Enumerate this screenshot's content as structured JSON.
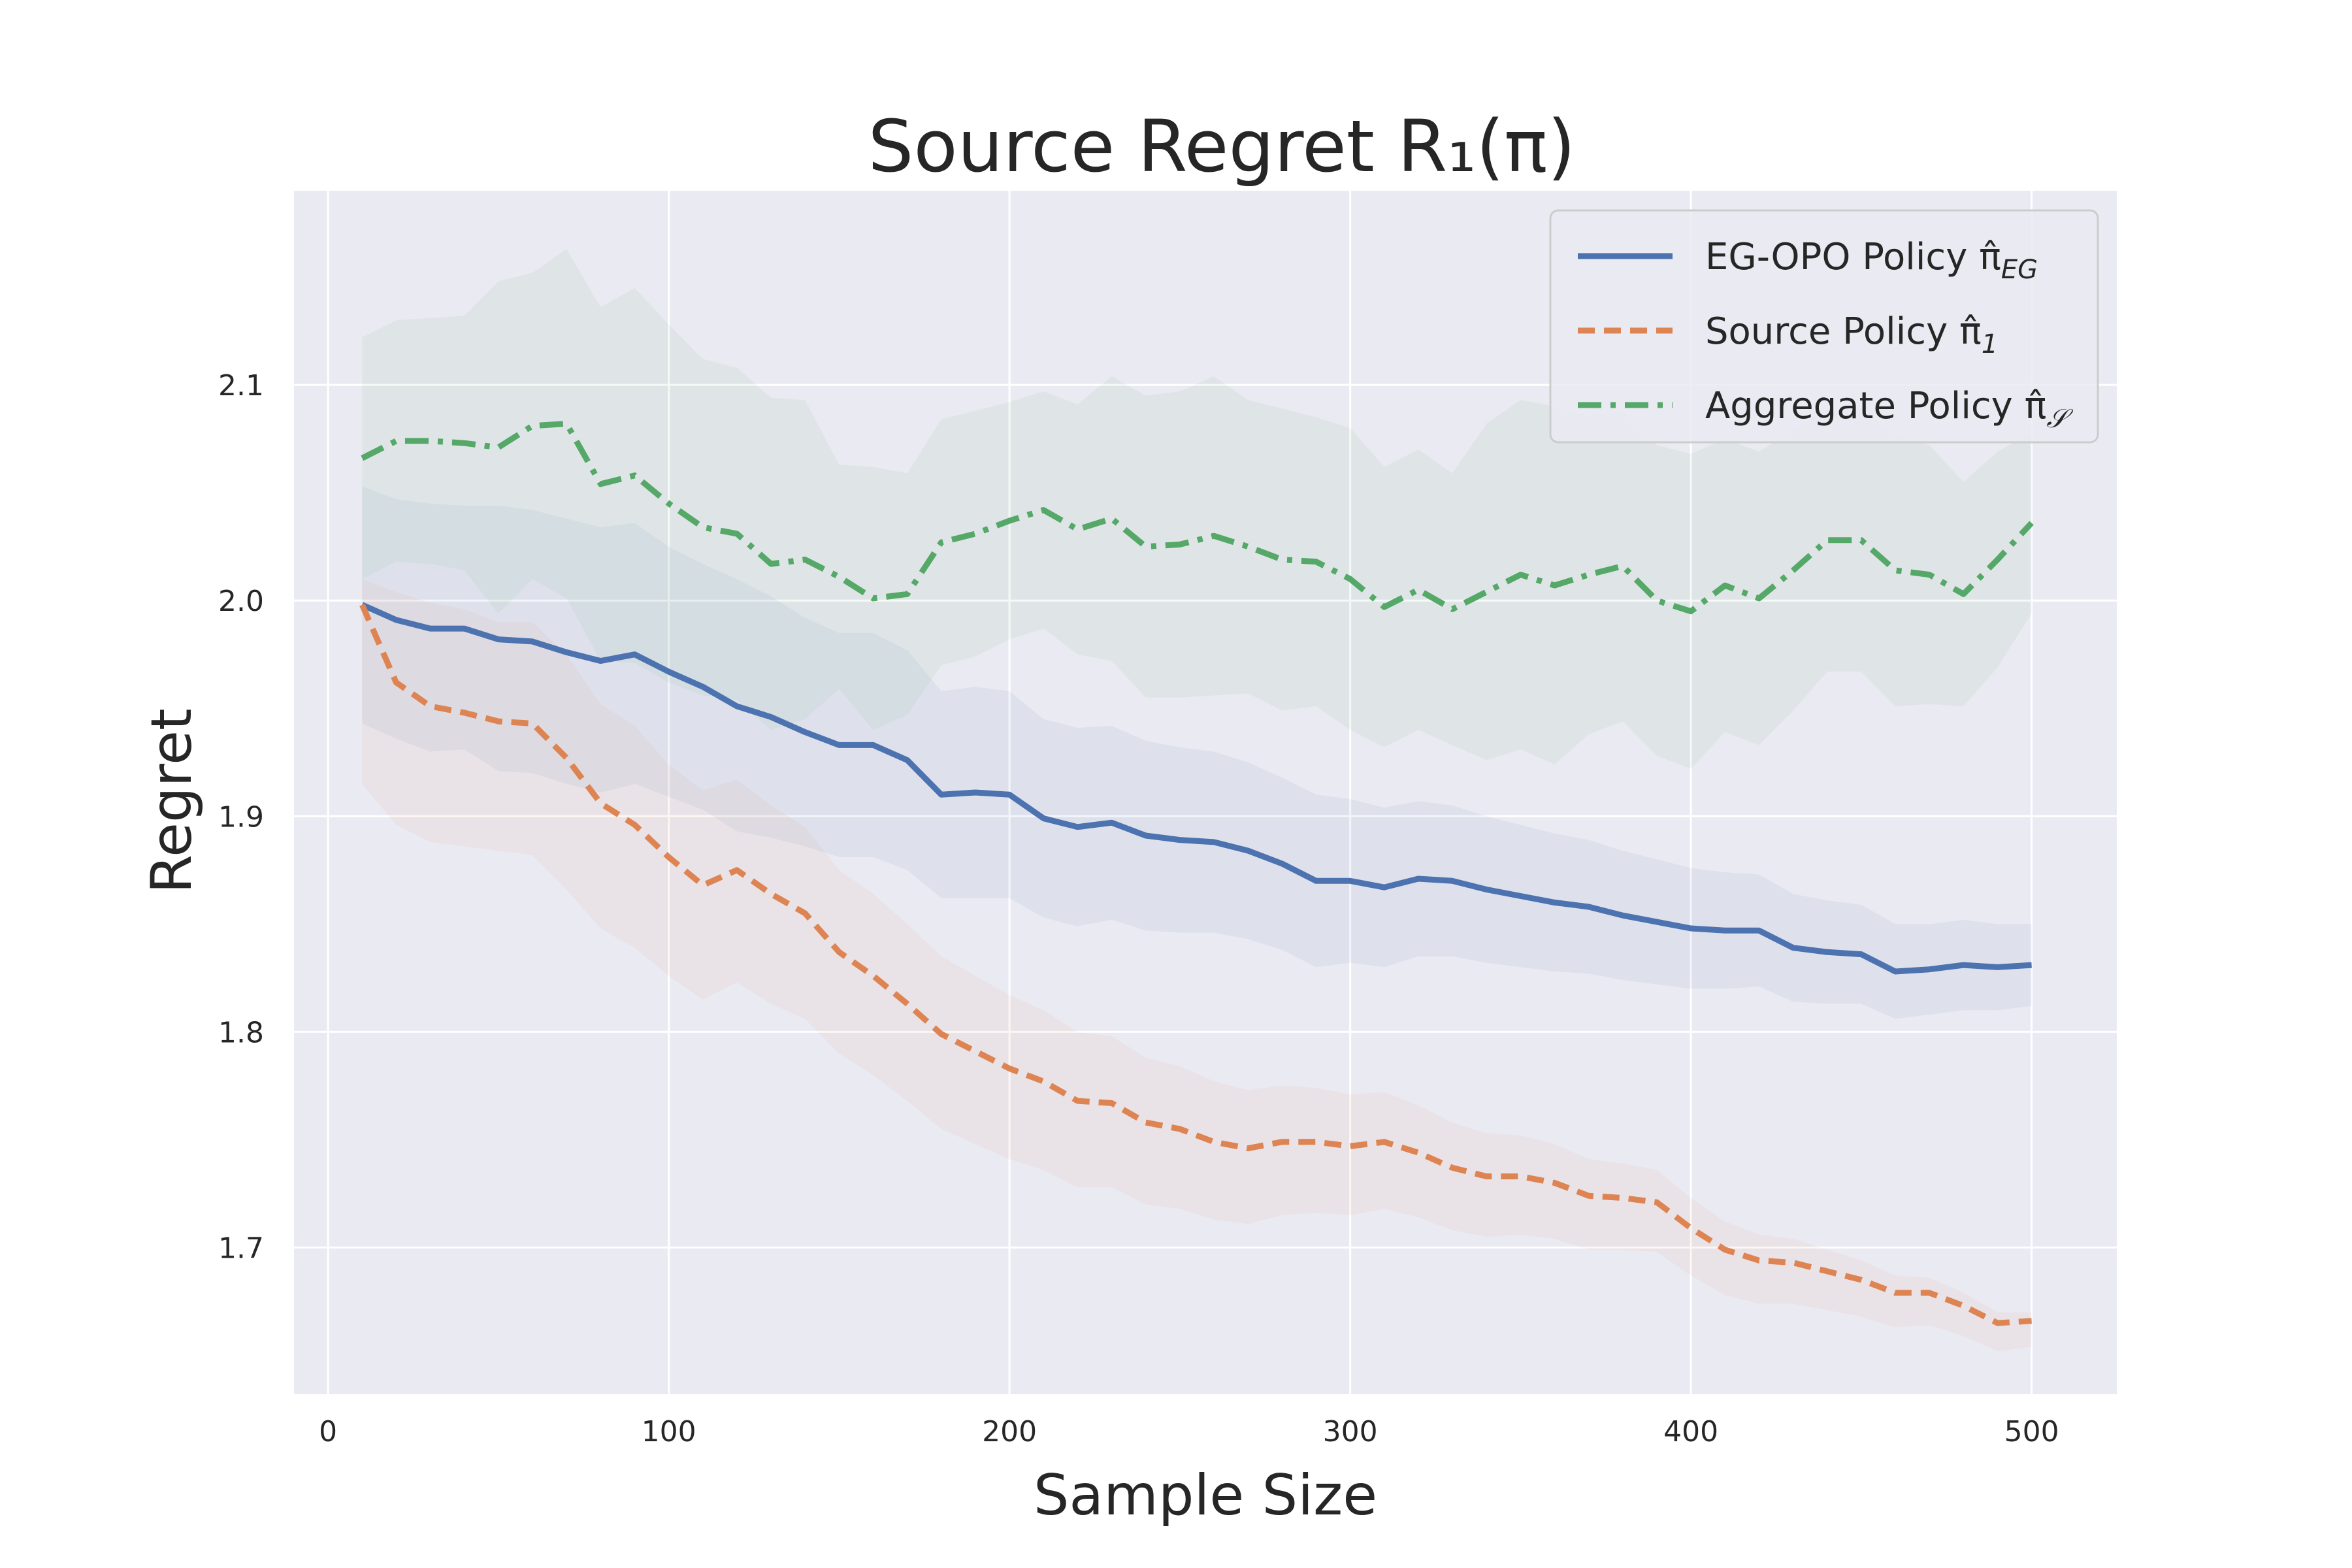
{
  "chart_data": {
    "type": "line",
    "title": "Source Regret  R₁(π)",
    "xlabel": "Sample Size",
    "ylabel": "Regret",
    "xlim": [
      -10,
      525
    ],
    "ylim": [
      1.632,
      2.19
    ],
    "xticks": [
      0,
      100,
      200,
      300,
      400,
      500
    ],
    "yticks": [
      1.7,
      1.8,
      1.9,
      2.0,
      2.1
    ],
    "ytick_labels": [
      "1.7",
      "1.8",
      "1.9",
      "2.0",
      "2.1"
    ],
    "grid": true,
    "legend_position": "top-right",
    "x": [
      10,
      20,
      30,
      40,
      50,
      60,
      70,
      80,
      90,
      100,
      110,
      120,
      130,
      140,
      150,
      160,
      170,
      180,
      190,
      200,
      210,
      220,
      230,
      240,
      250,
      260,
      270,
      280,
      290,
      300,
      310,
      320,
      330,
      340,
      350,
      360,
      370,
      380,
      390,
      400,
      410,
      420,
      430,
      440,
      450,
      460,
      470,
      480,
      490,
      500
    ],
    "series": [
      {
        "name": "EG-OPO Policy π̂",
        "name_subscript": "EG",
        "color": "#4c72b0",
        "dash": "solid",
        "values": [
          1.998,
          1.991,
          1.987,
          1.987,
          1.982,
          1.981,
          1.976,
          1.972,
          1.975,
          1.967,
          1.96,
          1.951,
          1.946,
          1.939,
          1.933,
          1.933,
          1.926,
          1.91,
          1.911,
          1.91,
          1.899,
          1.895,
          1.897,
          1.891,
          1.889,
          1.888,
          1.884,
          1.878,
          1.87,
          1.87,
          1.867,
          1.871,
          1.87,
          1.866,
          1.863,
          1.86,
          1.858,
          1.854,
          1.851,
          1.848,
          1.847,
          1.847,
          1.839,
          1.837,
          1.836,
          1.828,
          1.829,
          1.831,
          1.83,
          1.831
        ],
        "upper": [
          2.053,
          2.047,
          2.045,
          2.044,
          2.044,
          2.042,
          2.038,
          2.034,
          2.036,
          2.025,
          2.017,
          2.01,
          2.002,
          1.992,
          1.985,
          1.985,
          1.977,
          1.958,
          1.96,
          1.958,
          1.945,
          1.941,
          1.942,
          1.935,
          1.932,
          1.93,
          1.925,
          1.918,
          1.91,
          1.908,
          1.904,
          1.907,
          1.905,
          1.9,
          1.896,
          1.892,
          1.889,
          1.884,
          1.88,
          1.876,
          1.874,
          1.873,
          1.864,
          1.861,
          1.859,
          1.85,
          1.85,
          1.852,
          1.85,
          1.85
        ],
        "lower": [
          1.943,
          1.936,
          1.93,
          1.931,
          1.921,
          1.92,
          1.915,
          1.911,
          1.915,
          1.909,
          1.903,
          1.893,
          1.89,
          1.886,
          1.881,
          1.881,
          1.875,
          1.862,
          1.862,
          1.862,
          1.853,
          1.849,
          1.852,
          1.847,
          1.846,
          1.846,
          1.843,
          1.838,
          1.83,
          1.832,
          1.83,
          1.835,
          1.835,
          1.832,
          1.83,
          1.828,
          1.827,
          1.824,
          1.822,
          1.82,
          1.82,
          1.821,
          1.814,
          1.813,
          1.813,
          1.806,
          1.808,
          1.81,
          1.81,
          1.812
        ]
      },
      {
        "name": "Source Policy π̂",
        "name_subscript": "1",
        "color": "#dd8452",
        "dash": "dashed",
        "values": [
          1.998,
          1.962,
          1.951,
          1.948,
          1.944,
          1.943,
          1.927,
          1.906,
          1.896,
          1.881,
          1.868,
          1.875,
          1.864,
          1.855,
          1.837,
          1.826,
          1.813,
          1.799,
          1.791,
          1.783,
          1.777,
          1.768,
          1.767,
          1.758,
          1.755,
          1.749,
          1.746,
          1.749,
          1.749,
          1.747,
          1.749,
          1.744,
          1.737,
          1.733,
          1.733,
          1.73,
          1.724,
          1.723,
          1.721,
          1.709,
          1.699,
          1.694,
          1.693,
          1.689,
          1.685,
          1.679,
          1.679,
          1.673,
          1.665,
          1.666
        ],
        "upper": [
          2.01,
          2.004,
          1.999,
          1.996,
          1.99,
          1.99,
          1.975,
          1.952,
          1.942,
          1.924,
          1.912,
          1.917,
          1.905,
          1.895,
          1.875,
          1.864,
          1.85,
          1.835,
          1.826,
          1.817,
          1.81,
          1.8,
          1.798,
          1.788,
          1.784,
          1.777,
          1.773,
          1.775,
          1.774,
          1.771,
          1.772,
          1.766,
          1.758,
          1.753,
          1.752,
          1.748,
          1.741,
          1.739,
          1.736,
          1.723,
          1.712,
          1.706,
          1.704,
          1.699,
          1.694,
          1.687,
          1.686,
          1.679,
          1.67,
          1.67
        ],
        "lower": [
          1.915,
          1.896,
          1.888,
          1.886,
          1.884,
          1.882,
          1.866,
          1.848,
          1.839,
          1.826,
          1.815,
          1.823,
          1.813,
          1.806,
          1.79,
          1.78,
          1.768,
          1.755,
          1.748,
          1.741,
          1.736,
          1.728,
          1.728,
          1.72,
          1.718,
          1.713,
          1.711,
          1.715,
          1.716,
          1.715,
          1.718,
          1.714,
          1.708,
          1.705,
          1.706,
          1.704,
          1.699,
          1.699,
          1.698,
          1.687,
          1.678,
          1.674,
          1.674,
          1.671,
          1.668,
          1.663,
          1.664,
          1.659,
          1.652,
          1.654
        ]
      },
      {
        "name": "Aggregate Policy π̂",
        "name_subscript": "𝒮",
        "color": "#55a868",
        "dash": "dashdot",
        "values": [
          2.066,
          2.074,
          2.074,
          2.073,
          2.071,
          2.081,
          2.082,
          2.054,
          2.058,
          2.045,
          2.034,
          2.031,
          2.017,
          2.019,
          2.011,
          2.001,
          2.003,
          2.027,
          2.031,
          2.037,
          2.042,
          2.033,
          2.038,
          2.025,
          2.026,
          2.03,
          2.025,
          2.019,
          2.018,
          2.01,
          1.997,
          2.005,
          1.996,
          2.004,
          2.012,
          2.007,
          2.012,
          2.016,
          2.0,
          1.995,
          2.007,
          2.001,
          2.014,
          2.028,
          2.028,
          2.014,
          2.012,
          2.003,
          2.019,
          2.036
        ],
        "upper": [
          2.122,
          2.13,
          2.131,
          2.132,
          2.148,
          2.152,
          2.163,
          2.136,
          2.145,
          2.128,
          2.112,
          2.108,
          2.094,
          2.093,
          2.063,
          2.062,
          2.059,
          2.084,
          2.088,
          2.092,
          2.097,
          2.091,
          2.104,
          2.095,
          2.097,
          2.104,
          2.093,
          2.089,
          2.085,
          2.08,
          2.062,
          2.07,
          2.059,
          2.082,
          2.093,
          2.09,
          2.086,
          2.088,
          2.072,
          2.068,
          2.075,
          2.069,
          2.079,
          2.089,
          2.089,
          2.077,
          2.072,
          2.055,
          2.069,
          2.078
        ],
        "lower": [
          2.01,
          2.018,
          2.017,
          2.014,
          1.994,
          2.01,
          2.001,
          1.972,
          1.971,
          1.962,
          1.956,
          1.954,
          1.94,
          1.945,
          1.959,
          1.94,
          1.947,
          1.97,
          1.974,
          1.982,
          1.987,
          1.975,
          1.972,
          1.955,
          1.955,
          1.956,
          1.957,
          1.949,
          1.951,
          1.94,
          1.932,
          1.94,
          1.933,
          1.926,
          1.931,
          1.924,
          1.938,
          1.944,
          1.928,
          1.922,
          1.939,
          1.933,
          1.949,
          1.967,
          1.967,
          1.951,
          1.952,
          1.951,
          1.969,
          1.994
        ]
      }
    ]
  }
}
